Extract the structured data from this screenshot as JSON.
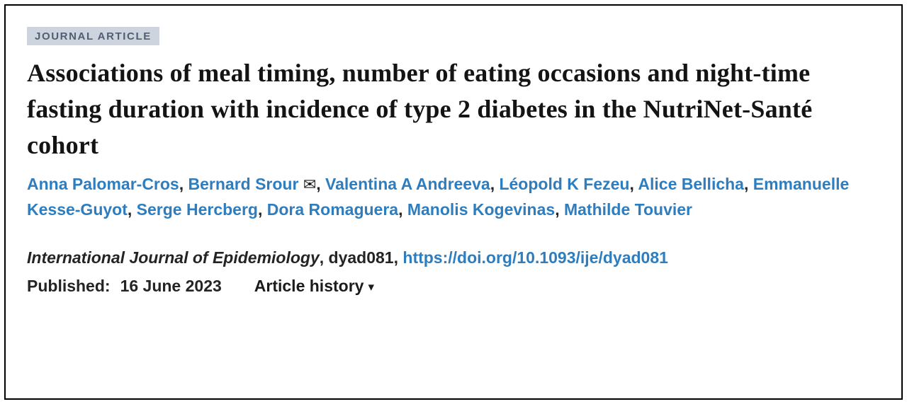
{
  "article": {
    "badge": "JOURNAL ARTICLE",
    "title": "Associations of meal timing, number of eating occasions and night-time fasting duration with incidence of type 2 diabetes in the NutriNet-Santé cohort",
    "authors": [
      {
        "name": "Anna Palomar-Cros",
        "corresponding": false
      },
      {
        "name": "Bernard Srour",
        "corresponding": true
      },
      {
        "name": "Valentina A Andreeva",
        "corresponding": false
      },
      {
        "name": "Léopold K Fezeu",
        "corresponding": false
      },
      {
        "name": "Alice Bellicha",
        "corresponding": false
      },
      {
        "name": "Emmanuelle Kesse-Guyot",
        "corresponding": false
      },
      {
        "name": "Serge Hercberg",
        "corresponding": false
      },
      {
        "name": "Dora Romaguera",
        "corresponding": false
      },
      {
        "name": "Manolis Kogevinas",
        "corresponding": false
      },
      {
        "name": "Mathilde Touvier",
        "corresponding": false
      }
    ],
    "author_separator": ",",
    "citation": {
      "journal": "International Journal of Epidemiology",
      "separator": ", ",
      "article_id": "dyad081",
      "doi": "https://doi.org/10.1093/ije/dyad081"
    },
    "published_label": "Published:",
    "published_date": "16 June 2023",
    "article_history_label": "Article history"
  },
  "icons": {
    "email": "✉",
    "caret_down": "▾"
  },
  "colors": {
    "link_blue": "#2e7dbe",
    "badge_bg": "#cdd4de",
    "badge_text": "#4e5f73",
    "body_text": "#242424"
  }
}
